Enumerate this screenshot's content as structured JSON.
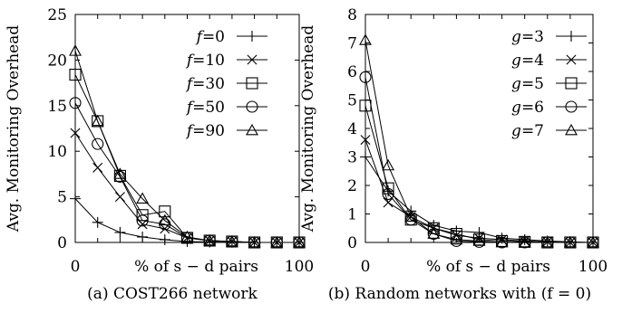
{
  "chart_data": [
    {
      "type": "line",
      "caption": "(a) COST266 network",
      "ylabel": "Avg. Monitoring Overhead",
      "xlabel": "% of s − d pairs",
      "xlim": [
        0,
        100
      ],
      "ylim": [
        0,
        25
      ],
      "xticks": [
        "0",
        "100"
      ],
      "yticks": [
        "0",
        "5",
        "10",
        "15",
        "20",
        "25"
      ],
      "legend_position": "top-right",
      "series": [
        {
          "name": "f=0",
          "var": "f",
          "val": "=0",
          "marker": "plus",
          "x": [
            0,
            10,
            20,
            30,
            40,
            50,
            60,
            70,
            80,
            90,
            100
          ],
          "y": [
            4.8,
            2.2,
            1.1,
            0.6,
            0.3,
            0.1,
            0.05,
            0.02,
            0,
            0,
            0
          ]
        },
        {
          "name": "f=10",
          "var": "f",
          "val": "=10",
          "marker": "cross",
          "x": [
            0,
            10,
            20,
            30,
            40,
            50,
            60,
            70,
            80,
            90,
            100
          ],
          "y": [
            12.0,
            8.2,
            5.0,
            2.0,
            1.5,
            0.5,
            0.2,
            0.1,
            0,
            0,
            0
          ]
        },
        {
          "name": "f=30",
          "var": "f",
          "val": "=30",
          "marker": "square",
          "x": [
            0,
            10,
            20,
            30,
            40,
            50,
            60,
            70,
            80,
            90,
            100
          ],
          "y": [
            18.4,
            13.3,
            7.3,
            3.0,
            3.4,
            0.5,
            0.2,
            0.1,
            0,
            0,
            0
          ]
        },
        {
          "name": "f=50",
          "var": "f",
          "val": "=50",
          "marker": "circle",
          "x": [
            0,
            10,
            20,
            30,
            40,
            50,
            60,
            70,
            80,
            90,
            100
          ],
          "y": [
            15.3,
            10.8,
            7.2,
            2.4,
            2.0,
            0.5,
            0.2,
            0.1,
            0,
            0,
            0
          ]
        },
        {
          "name": "f=90",
          "var": "f",
          "val": "=90",
          "marker": "triangle",
          "x": [
            0,
            10,
            20,
            30,
            40,
            50,
            60,
            70,
            80,
            90,
            100
          ],
          "y": [
            21.0,
            13.3,
            7.5,
            4.8,
            2.4,
            0.6,
            0.2,
            0.1,
            0,
            0,
            0
          ]
        }
      ]
    },
    {
      "type": "line",
      "caption": "(b) Random networks with (f = 0)",
      "ylabel": "Avg. Monitoring Overhead",
      "xlabel": "% of s − d pairs",
      "xlim": [
        0,
        100
      ],
      "ylim": [
        0,
        8
      ],
      "xticks": [
        "0",
        "100"
      ],
      "yticks": [
        "0",
        "1",
        "2",
        "3",
        "4",
        "5",
        "6",
        "7",
        "8"
      ],
      "legend_position": "top-right",
      "series": [
        {
          "name": "g=3",
          "var": "g",
          "val": "=3",
          "marker": "plus",
          "x": [
            0,
            10,
            20,
            30,
            40,
            50,
            60,
            70,
            80,
            90,
            100
          ],
          "y": [
            3.0,
            1.8,
            1.1,
            0.6,
            0.4,
            0.35,
            0.15,
            0.1,
            0.05,
            0.02,
            0
          ]
        },
        {
          "name": "g=4",
          "var": "g",
          "val": "=4",
          "marker": "cross",
          "x": [
            0,
            10,
            20,
            30,
            40,
            50,
            60,
            70,
            80,
            90,
            100
          ],
          "y": [
            3.6,
            1.4,
            0.9,
            0.5,
            0.25,
            0.15,
            0.1,
            0.05,
            0.02,
            0,
            0
          ]
        },
        {
          "name": "g=5",
          "var": "g",
          "val": "=5",
          "marker": "square",
          "x": [
            0,
            10,
            20,
            30,
            40,
            50,
            60,
            70,
            80,
            90,
            100
          ],
          "y": [
            4.8,
            1.9,
            0.8,
            0.5,
            0.3,
            0.1,
            0.05,
            0.02,
            0,
            0,
            0
          ]
        },
        {
          "name": "g=6",
          "var": "g",
          "val": "=6",
          "marker": "circle",
          "x": [
            0,
            10,
            20,
            30,
            40,
            50,
            60,
            70,
            80,
            90,
            100
          ],
          "y": [
            5.8,
            1.7,
            0.8,
            0.3,
            0.05,
            0.02,
            0,
            0,
            0,
            0,
            0
          ]
        },
        {
          "name": "g=7",
          "var": "g",
          "val": "=7",
          "marker": "triangle",
          "x": [
            0,
            10,
            20,
            30,
            40,
            50,
            60,
            70,
            80,
            90,
            100
          ],
          "y": [
            7.1,
            2.7,
            0.9,
            0.3,
            0.1,
            0.05,
            0,
            0,
            0,
            0,
            0
          ]
        }
      ]
    }
  ]
}
